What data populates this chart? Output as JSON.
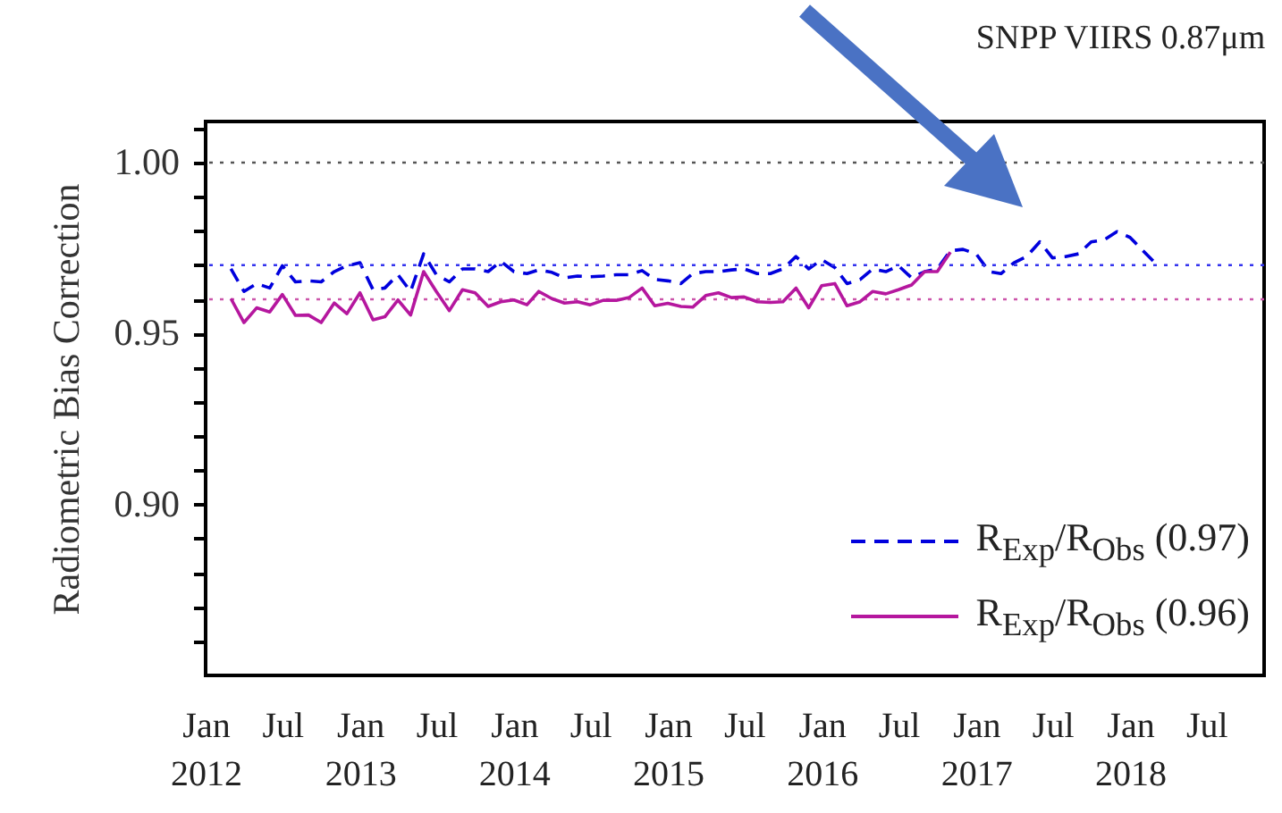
{
  "chart_data": {
    "type": "line",
    "title": "SNPP VIIRS 0.87μm",
    "ylabel": "Radiometric Bias Correction",
    "xlim": [
      "2012-01-01",
      "2018-11-15"
    ],
    "xticks": [
      {
        "value": "2012-01-01",
        "label": "Jan\n2012"
      },
      {
        "value": "2012-07-01",
        "label": "Jul"
      },
      {
        "value": "2013-01-01",
        "label": "Jan\n2013"
      },
      {
        "value": "2013-07-01",
        "label": "Jul"
      },
      {
        "value": "2014-01-01",
        "label": "Jan\n2014"
      },
      {
        "value": "2014-07-01",
        "label": "Jul"
      },
      {
        "value": "2015-01-01",
        "label": "Jan\n2015"
      },
      {
        "value": "2015-07-01",
        "label": "Jul"
      },
      {
        "value": "2016-01-01",
        "label": "Jan\n2016"
      },
      {
        "value": "2016-07-01",
        "label": "Jul"
      },
      {
        "value": "2017-01-01",
        "label": "Jan\n2017"
      },
      {
        "value": "2017-07-01",
        "label": "Jul"
      },
      {
        "value": "2018-01-01",
        "label": "Jan\n2018"
      },
      {
        "value": "2018-07-01",
        "label": "Jul"
      }
    ],
    "ylim": [
      0.85,
      1.012
    ],
    "yticks": [
      {
        "value": 0.86,
        "label": null
      },
      {
        "value": 0.87,
        "label": null
      },
      {
        "value": 0.88,
        "label": null
      },
      {
        "value": 0.89,
        "label": null
      },
      {
        "value": 0.9,
        "label": "0.90"
      },
      {
        "value": 0.91,
        "label": null
      },
      {
        "value": 0.92,
        "label": null
      },
      {
        "value": 0.93,
        "label": null
      },
      {
        "value": 0.94,
        "label": null
      },
      {
        "value": 0.95,
        "label": "0.95"
      },
      {
        "value": 0.96,
        "label": null
      },
      {
        "value": 0.97,
        "label": null
      },
      {
        "value": 0.98,
        "label": null
      },
      {
        "value": 0.99,
        "label": null
      },
      {
        "value": 1.0,
        "label": "1.00"
      },
      {
        "value": 1.01,
        "label": null
      }
    ],
    "legend": "bottom right",
    "grid": false,
    "ref_lines": [
      {
        "axis": "y",
        "value": 1.0,
        "color": "#555555",
        "line_style": "dotted"
      },
      {
        "axis": "y",
        "value": 0.97,
        "color": "#3333ee",
        "line_style": "dotted"
      },
      {
        "axis": "y",
        "value": 0.96,
        "color": "#cc55aa",
        "line_style": "dotted"
      }
    ],
    "series": [
      {
        "name": "R$_{Exp}$/R$_{Obs}$ (0.97)",
        "color": "#0000dd",
        "line_style": "dashed",
        "x": [
          "2012-03",
          "2012-04",
          "2012-05",
          "2012-06",
          "2012-07",
          "2012-08",
          "2012-09",
          "2012-10",
          "2012-11",
          "2012-12",
          "2013-01",
          "2013-02",
          "2013-03",
          "2013-04",
          "2013-05",
          "2013-06",
          "2013-07",
          "2013-08",
          "2013-09",
          "2013-10",
          "2013-11",
          "2013-12",
          "2014-01",
          "2014-02",
          "2014-03",
          "2014-04",
          "2014-05",
          "2014-06",
          "2014-07",
          "2014-08",
          "2014-09",
          "2014-10",
          "2014-11",
          "2014-12",
          "2015-01",
          "2015-02",
          "2015-03",
          "2015-04",
          "2015-05",
          "2015-06",
          "2015-07",
          "2015-08",
          "2015-09",
          "2015-10",
          "2015-11",
          "2015-12",
          "2016-01",
          "2016-02",
          "2016-03",
          "2016-04",
          "2016-05",
          "2016-06",
          "2016-07",
          "2016-08",
          "2016-09",
          "2016-10",
          "2016-11",
          "2016-12",
          "2017-01",
          "2017-02",
          "2017-03",
          "2017-04",
          "2017-05",
          "2017-06",
          "2017-07",
          "2017-08",
          "2017-09",
          "2017-10",
          "2017-11",
          "2017-12",
          "2018-01",
          "2018-02",
          "2018-03"
        ],
        "values": [
          0.9689,
          0.9623,
          0.9646,
          0.9633,
          0.9698,
          0.9651,
          0.9654,
          0.9651,
          0.9681,
          0.9698,
          0.9707,
          0.9628,
          0.9633,
          0.9672,
          0.9623,
          0.9733,
          0.9672,
          0.9651,
          0.9689,
          0.9689,
          0.9681,
          0.9711,
          0.9681,
          0.9675,
          0.9686,
          0.9679,
          0.9663,
          0.9668,
          0.9666,
          0.9668,
          0.9672,
          0.9672,
          0.9684,
          0.9658,
          0.9654,
          0.9646,
          0.9675,
          0.9681,
          0.9681,
          0.9686,
          0.9689,
          0.9675,
          0.9675,
          0.9689,
          0.9725,
          0.9689,
          0.9716,
          0.9693,
          0.9646,
          0.9658,
          0.9689,
          0.9681,
          0.9698,
          0.9663,
          0.9681,
          0.9689,
          0.9742,
          0.9746,
          0.9733,
          0.9681,
          0.9675,
          0.9707,
          0.9725,
          0.9768,
          0.9721,
          0.9725,
          0.9733,
          0.9768,
          0.9774,
          0.9798,
          0.9781,
          0.9742,
          0.9707
        ]
      },
      {
        "name": "R$_{Exp}$/R$_{Obs}$ (0.96)",
        "color": "#b5179e",
        "line_style": "solid",
        "x": [
          "2012-03",
          "2012-04",
          "2012-05",
          "2012-06",
          "2012-07",
          "2012-08",
          "2012-09",
          "2012-10",
          "2012-11",
          "2012-12",
          "2013-01",
          "2013-02",
          "2013-03",
          "2013-04",
          "2013-05",
          "2013-06",
          "2013-07",
          "2013-08",
          "2013-09",
          "2013-10",
          "2013-11",
          "2013-12",
          "2014-01",
          "2014-02",
          "2014-03",
          "2014-04",
          "2014-05",
          "2014-06",
          "2014-07",
          "2014-08",
          "2014-09",
          "2014-10",
          "2014-11",
          "2014-12",
          "2015-01",
          "2015-02",
          "2015-03",
          "2015-04",
          "2015-05",
          "2015-06",
          "2015-07",
          "2015-08",
          "2015-09",
          "2015-10",
          "2015-11",
          "2015-12",
          "2016-01",
          "2016-02",
          "2016-03",
          "2016-04",
          "2016-05",
          "2016-06",
          "2016-07",
          "2016-08",
          "2016-09",
          "2016-10",
          "2016-11"
        ],
        "values": [
          0.9602,
          0.9532,
          0.9575,
          0.9563,
          0.9614,
          0.9553,
          0.9554,
          0.9532,
          0.9589,
          0.9558,
          0.9619,
          0.954,
          0.9549,
          0.9598,
          0.9554,
          0.9681,
          0.9623,
          0.9567,
          0.9628,
          0.9619,
          0.9579,
          0.9593,
          0.9598,
          0.9584,
          0.9623,
          0.9602,
          0.9589,
          0.9593,
          0.9584,
          0.9597,
          0.9597,
          0.9605,
          0.9633,
          0.9581,
          0.9588,
          0.9579,
          0.9577,
          0.9611,
          0.9619,
          0.9605,
          0.9607,
          0.9593,
          0.9591,
          0.9593,
          0.9633,
          0.9575,
          0.964,
          0.9646,
          0.9581,
          0.9593,
          0.9623,
          0.9616,
          0.9628,
          0.9642,
          0.9681,
          0.9681,
          0.9738
        ]
      }
    ]
  }
}
